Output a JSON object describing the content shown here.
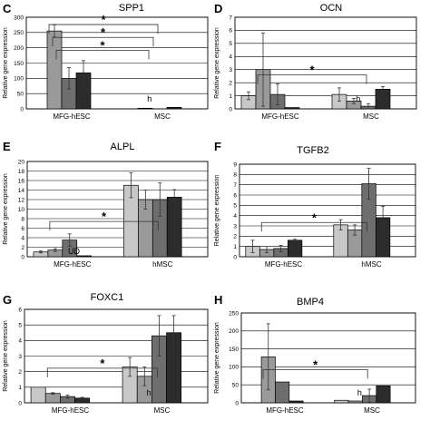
{
  "chart_data": [
    {
      "panel": "C",
      "title": "SPP1",
      "type": "bar",
      "ylabel": "Relative gene expression",
      "ylim": [
        0,
        300
      ],
      "yticks": [
        0,
        50,
        100,
        150,
        200,
        250,
        300
      ],
      "groups": [
        "MFG-hESC",
        "MSC"
      ],
      "values": [
        [
          0,
          255,
          100,
          118
        ],
        [
          0,
          2,
          0,
          5
        ]
      ],
      "errors": [
        [
          0,
          20,
          35,
          40
        ],
        [
          0,
          0,
          0,
          0
        ]
      ],
      "annotations": [
        "*",
        "*",
        "*"
      ],
      "group_text": [
        null,
        "h"
      ]
    },
    {
      "panel": "D",
      "title": "OCN",
      "type": "bar",
      "ylabel": "Relative gene expression",
      "ylim": [
        0,
        7
      ],
      "yticks": [
        0,
        1,
        2,
        3,
        4,
        5,
        6,
        7
      ],
      "groups": [
        "MFG-hESC",
        "MSC"
      ],
      "values": [
        [
          1.0,
          3.0,
          1.1,
          0.1
        ],
        [
          1.1,
          0.6,
          0.2,
          1.5
        ]
      ],
      "errors": [
        [
          0.3,
          2.8,
          0.8,
          0.0
        ],
        [
          0.5,
          0.2,
          0.2,
          0.2
        ]
      ],
      "annotations": [
        "*"
      ],
      "group_text": [
        null,
        "h"
      ]
    },
    {
      "panel": "E",
      "title": "ALPL",
      "type": "bar",
      "ylabel": "Relative gene expression",
      "ylim": [
        0,
        20
      ],
      "yticks": [
        0,
        2,
        4,
        6,
        8,
        10,
        12,
        14,
        16,
        18,
        20
      ],
      "groups": [
        "MFG-hESC",
        "hMSC"
      ],
      "values": [
        [
          1.0,
          1.4,
          3.5,
          0.2
        ],
        [
          15,
          12,
          12,
          12.5
        ]
      ],
      "errors": [
        [
          0.2,
          0.3,
          1.3,
          0.0
        ],
        [
          2.6,
          2.0,
          3.5,
          1.6
        ]
      ],
      "annotations": [
        "*"
      ],
      "group_text": [
        "UD",
        null
      ]
    },
    {
      "panel": "F",
      "title": "TGFB2",
      "type": "bar",
      "ylabel": "Relative gene expression",
      "ylim": [
        0,
        9
      ],
      "yticks": [
        0,
        1,
        2,
        3,
        4,
        5,
        6,
        7,
        8,
        9
      ],
      "groups": [
        "MFG-hESC",
        "hMSC"
      ],
      "values": [
        [
          1.0,
          0.7,
          0.8,
          1.6
        ],
        [
          3.1,
          2.6,
          7.1,
          3.8
        ]
      ],
      "errors": [
        [
          0.6,
          0.3,
          0.3,
          0.1
        ],
        [
          0.5,
          0.5,
          1.5,
          1.1
        ]
      ],
      "annotations": [
        "*"
      ],
      "group_text": [
        null,
        null
      ]
    },
    {
      "panel": "G",
      "title": "FOXC1",
      "type": "bar",
      "ylabel": "Relative gene expression",
      "ylim": [
        0,
        6
      ],
      "yticks": [
        0,
        1,
        2,
        3,
        4,
        5,
        6
      ],
      "groups": [
        "MFG-hESC",
        "MSC"
      ],
      "values": [
        [
          1.0,
          0.6,
          0.4,
          0.3
        ],
        [
          2.3,
          1.7,
          4.3,
          4.5
        ]
      ],
      "errors": [
        [
          0.0,
          0.05,
          0.1,
          0.05
        ],
        [
          0.6,
          0.6,
          1.3,
          1.1
        ]
      ],
      "annotations": [
        "*"
      ],
      "group_text": [
        null,
        "h"
      ]
    },
    {
      "panel": "H",
      "title": "BMP4",
      "type": "bar",
      "ylabel": "Relative gene expression",
      "ylim": [
        0,
        250
      ],
      "yticks": [
        0,
        50,
        100,
        150,
        200,
        250
      ],
      "groups": [
        "MFG-hESC",
        "MSC"
      ],
      "values": [
        [
          0,
          128,
          58,
          5
        ],
        [
          7,
          5,
          20,
          47
        ]
      ],
      "errors": [
        [
          0,
          92,
          0,
          0
        ],
        [
          0,
          0,
          18,
          0
        ]
      ],
      "annotations": [
        "*"
      ],
      "group_text": [
        null,
        "h"
      ]
    }
  ],
  "colors": {
    "bars": [
      "#c8c8c8",
      "#9a9a9a",
      "#6e6e6e",
      "#2c2c2c"
    ],
    "frame": "#000000",
    "grid": "#000000"
  }
}
